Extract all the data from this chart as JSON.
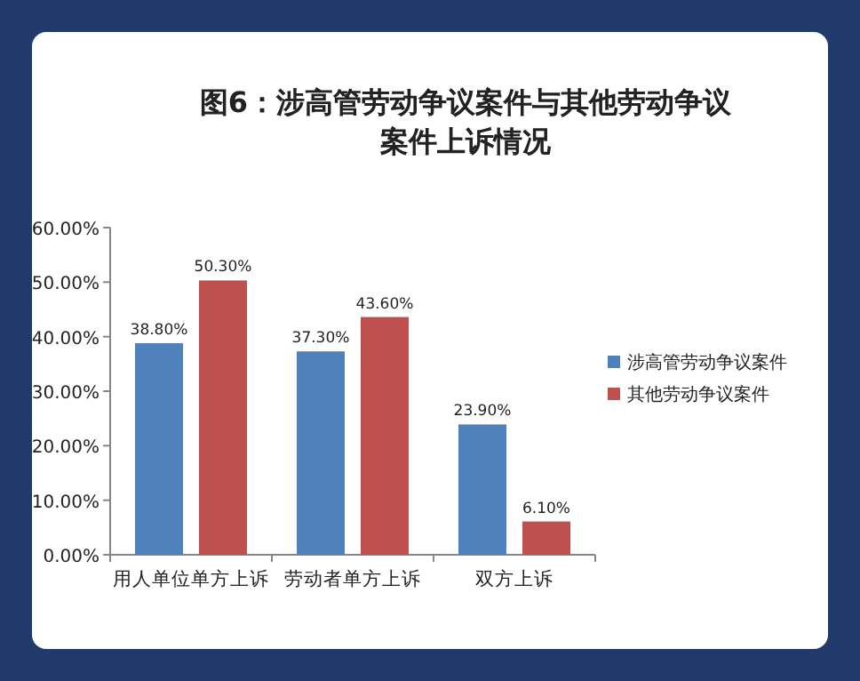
{
  "chart_data": {
    "type": "bar",
    "title": "图6：涉高管劳动争议案件与其他劳动争议案件上诉情况",
    "categories": [
      "用人单位单方上诉",
      "劳动者单方上诉",
      "双方上诉"
    ],
    "series": [
      {
        "name": "涉高管劳动争议案件",
        "color": "#4f81bd",
        "values": [
          38.8,
          37.3,
          23.9
        ],
        "value_labels": [
          "38.80%",
          "37.30%",
          "23.90%"
        ]
      },
      {
        "name": "其他劳动争议案件",
        "color": "#c0504d",
        "values": [
          50.3,
          43.6,
          6.1
        ],
        "value_labels": [
          "50.30%",
          "43.60%",
          "6.10%"
        ]
      }
    ],
    "ylim": [
      0,
      60
    ],
    "yticks": [
      {
        "value": 0,
        "label": "0.00%"
      },
      {
        "value": 10,
        "label": "10.00%"
      },
      {
        "value": 20,
        "label": "20.00%"
      },
      {
        "value": 30,
        "label": "30.00%"
      },
      {
        "value": 40,
        "label": "40.00%"
      },
      {
        "value": 50,
        "label": "50.00%"
      },
      {
        "value": 60,
        "label": "60.00%"
      }
    ],
    "legend": "right"
  }
}
